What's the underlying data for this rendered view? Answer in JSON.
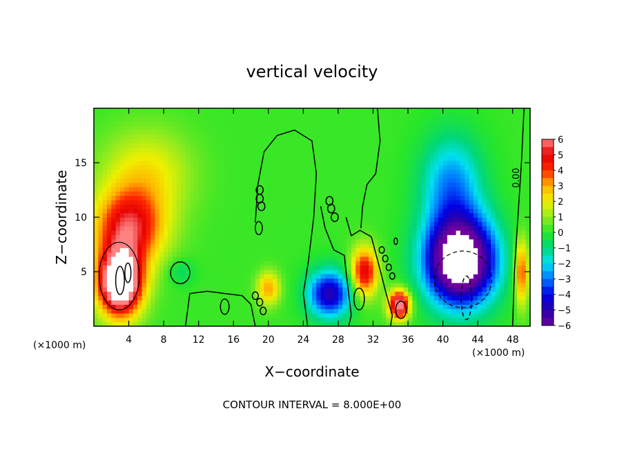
{
  "chart_data": {
    "type": "heatmap",
    "title": "vertical velocity",
    "xlabel": "X−coordinate",
    "ylabel": "Z−coordinate",
    "x_unit_left": "(×1000 m)",
    "x_unit_right": "(×1000 m)",
    "xlim": [
      0,
      50
    ],
    "ylim": [
      0,
      20
    ],
    "x_ticks": [
      "4",
      "8",
      "12",
      "16",
      "20",
      "24",
      "28",
      "32",
      "36",
      "40",
      "44",
      "48"
    ],
    "y_ticks": [
      "5",
      "10",
      "15"
    ],
    "colorbar": {
      "range": [
        -6,
        6
      ],
      "labels": [
        "6",
        "5",
        "4",
        "3",
        "2",
        "1",
        "0",
        "−1",
        "−2",
        "−3",
        "−4",
        "−5",
        "−6"
      ]
    },
    "contour_label": "0.00",
    "footer": "CONTOUR INTERVAL = 8.000E+00",
    "features": [
      {
        "x": 4,
        "z": 9,
        "value": 5,
        "sx": 4.0,
        "sz": 3.5
      },
      {
        "x": 3,
        "z": 4,
        "value": 9,
        "sx": 2.5,
        "sz": 3.0
      },
      {
        "x": 6,
        "z": 14,
        "value": 2,
        "sx": 5.0,
        "sz": 4.0
      },
      {
        "x": 20,
        "z": 3.5,
        "value": 3,
        "sx": 1.3,
        "sz": 1.5
      },
      {
        "x": 27,
        "z": 3,
        "value": -5,
        "sx": 2.5,
        "sz": 2.2
      },
      {
        "x": 31,
        "z": 5,
        "value": 5,
        "sx": 1.5,
        "sz": 2.2
      },
      {
        "x": 35,
        "z": 2,
        "value": 7,
        "sx": 1.2,
        "sz": 1.3
      },
      {
        "x": 42,
        "z": 6,
        "value": -9,
        "sx": 4.0,
        "sz": 4.0
      },
      {
        "x": 41,
        "z": 13,
        "value": -3,
        "sx": 3.5,
        "sz": 4.5
      },
      {
        "x": 10,
        "z": 5,
        "value": -1,
        "sx": 1.5,
        "sz": 1.2
      },
      {
        "x": 49,
        "z": 5,
        "value": 4,
        "sx": 0.8,
        "sz": 3.0
      }
    ]
  }
}
